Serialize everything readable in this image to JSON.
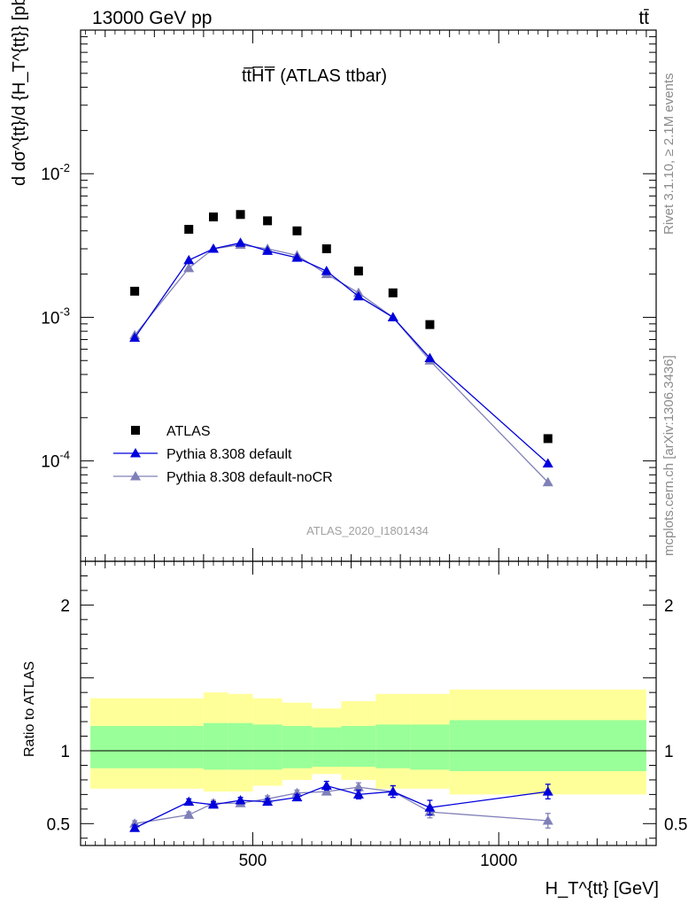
{
  "header": {
    "energy_label": "13000 GeV pp",
    "process_label": "tt̄"
  },
  "side_notes": {
    "rivet": "Rivet 3.1.10, ≥ 2.1M events",
    "mcplots": "mcplots.cern.ch [arXiv:1306.3436]"
  },
  "analysis_id": "ATLAS_2020_I1801434",
  "colors": {
    "data": "#000000",
    "default": "#0000dd",
    "nocr": "#8080b8",
    "band_inner": "#99ff99",
    "band_outer": "#ffff99"
  },
  "chart_data": [
    {
      "type": "scatter",
      "title": "tt̅H̅T̅ (ATLAS ttbar)",
      "xlabel": "",
      "ylabel": "d dσ^{tt}/d {H_T^{tt}} [pb/GeV]",
      "yscale": "log",
      "xlim": [
        150,
        1320
      ],
      "ylim": [
        2e-05,
        0.1
      ],
      "y_ticks": [
        "10^{-4}",
        "10^{-3}",
        "10^{-2}"
      ],
      "legend": "bottom-left",
      "x": [
        260,
        370,
        420,
        475,
        530,
        590,
        650,
        715,
        785,
        860,
        1100
      ],
      "series": [
        {
          "name": "ATLAS",
          "marker": "square",
          "values": [
            0.00152,
            0.0041,
            0.005,
            0.0052,
            0.0047,
            0.004,
            0.003,
            0.0021,
            0.00148,
            0.00089,
            0.000143
          ]
        },
        {
          "name": "Pythia 8.308 default",
          "marker": "triangle",
          "values": [
            0.00072,
            0.0025,
            0.003,
            0.0033,
            0.0029,
            0.0026,
            0.0021,
            0.0014,
            0.001,
            0.00052,
            9.6e-05
          ]
        },
        {
          "name": "Pythia 8.308 default-noCR",
          "marker": "triangle",
          "values": [
            0.00075,
            0.0022,
            0.003,
            0.0032,
            0.003,
            0.0027,
            0.002,
            0.00148,
            0.001,
            0.0005,
            7.1e-05
          ]
        }
      ]
    },
    {
      "type": "scatter",
      "xlabel": "H_T^{tt} [GeV]",
      "ylabel": "Ratio to ATLAS",
      "xlim": [
        150,
        1320
      ],
      "ylim": [
        0.35,
        2.3
      ],
      "x_ticks": [
        500,
        1000
      ],
      "y_ticks": [
        0.5,
        1,
        2
      ],
      "x": [
        260,
        370,
        420,
        475,
        530,
        590,
        650,
        715,
        785,
        860,
        1100
      ],
      "series": [
        {
          "name": "Pythia 8.308 default",
          "values": [
            0.47,
            0.65,
            0.63,
            0.66,
            0.65,
            0.68,
            0.76,
            0.7,
            0.72,
            0.61,
            0.72
          ],
          "errors": [
            0.02,
            0.02,
            0.02,
            0.02,
            0.02,
            0.02,
            0.03,
            0.03,
            0.04,
            0.05,
            0.05
          ]
        },
        {
          "name": "Pythia 8.308 default-noCR",
          "values": [
            0.5,
            0.56,
            0.64,
            0.64,
            0.67,
            0.71,
            0.72,
            0.75,
            0.72,
            0.58,
            0.52
          ],
          "errors": [
            0.02,
            0.02,
            0.02,
            0.02,
            0.02,
            0.02,
            0.02,
            0.03,
            0.04,
            0.04,
            0.05
          ]
        }
      ],
      "bands": {
        "x_edges": [
          170,
          340,
          400,
          450,
          500,
          560,
          620,
          680,
          750,
          820,
          900,
          1300
        ],
        "inner_low": [
          0.88,
          0.88,
          0.87,
          0.87,
          0.87,
          0.88,
          0.89,
          0.89,
          0.88,
          0.87,
          0.86
        ],
        "inner_high": [
          1.17,
          1.17,
          1.19,
          1.19,
          1.18,
          1.17,
          1.16,
          1.17,
          1.18,
          1.18,
          1.21
        ],
        "outer_low": [
          0.74,
          0.74,
          0.72,
          0.72,
          0.76,
          0.8,
          0.84,
          0.8,
          0.74,
          0.74,
          0.7
        ],
        "outer_high": [
          1.36,
          1.36,
          1.4,
          1.39,
          1.36,
          1.33,
          1.29,
          1.34,
          1.39,
          1.39,
          1.42
        ]
      }
    }
  ]
}
